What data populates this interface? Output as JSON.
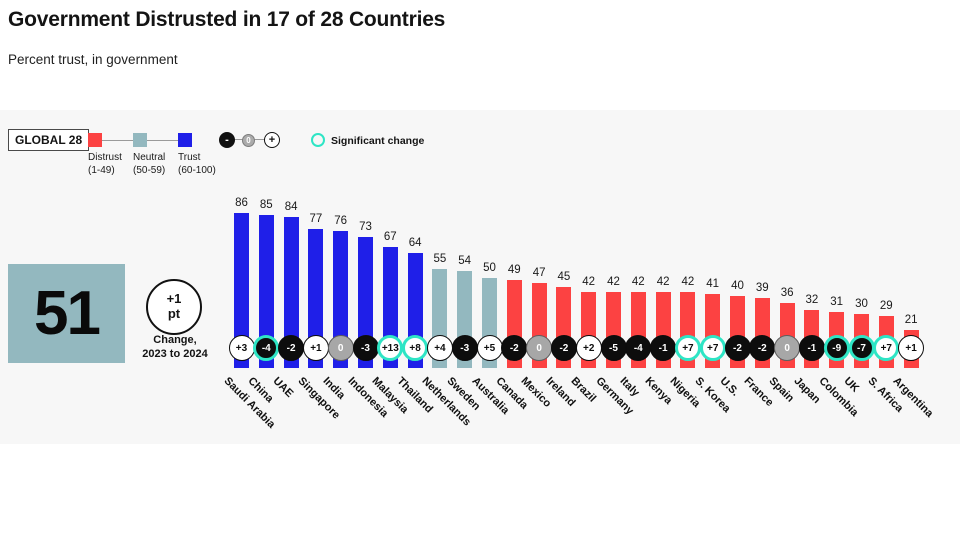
{
  "header": {
    "title": "Government Distrusted in 17 of 28 Countries",
    "subtitle": "Percent trust, in government"
  },
  "legend": {
    "global_label": "GLOBAL 28",
    "categories": [
      {
        "name": "Distrust",
        "range": "(1-49)",
        "color": "#fc4242"
      },
      {
        "name": "Neutral",
        "range": "(50-59)",
        "color": "#93b8bf"
      },
      {
        "name": "Trust",
        "range": "(60-100)",
        "color": "#1f1fe8"
      }
    ],
    "change_markers": {
      "minus": "-",
      "zero": "0",
      "plus": "+"
    },
    "significant_label": "Significant change",
    "significant_color": "#2ee5c5"
  },
  "summary": {
    "global_score": "51",
    "change_value": "+1",
    "change_unit": "pt",
    "change_caption_line1": "Change,",
    "change_caption_line2": "2023 to 2024"
  },
  "badge_colors": {
    "pos_bg": "#ffffff",
    "neg_bg": "#0d0d0d",
    "zero_bg": "#a7a7a7",
    "ring": "#2ee5c5"
  },
  "chart_data": {
    "type": "bar",
    "title": "Government Distrusted in 17 of 28 Countries",
    "ylabel": "Percent trust, in government",
    "ylim": [
      0,
      100
    ],
    "legend_position": "top-left",
    "grid": false,
    "color_rule": "value 1-49 distrust red, 50-59 neutral gray-blue, 60-100 trust blue",
    "countries": [
      {
        "name": "Saudi Arabia",
        "value": 86,
        "change": "+3",
        "significant": false
      },
      {
        "name": "China",
        "value": 85,
        "change": "-4",
        "significant": true
      },
      {
        "name": "UAE",
        "value": 84,
        "change": "-2",
        "significant": false
      },
      {
        "name": "Singapore",
        "value": 77,
        "change": "+1",
        "significant": false
      },
      {
        "name": "India",
        "value": 76,
        "change": "0",
        "significant": false
      },
      {
        "name": "Indonesia",
        "value": 73,
        "change": "-3",
        "significant": false
      },
      {
        "name": "Malaysia",
        "value": 67,
        "change": "+13",
        "significant": true
      },
      {
        "name": "Thailand",
        "value": 64,
        "change": "+8",
        "significant": true
      },
      {
        "name": "Netherlands",
        "value": 55,
        "change": "+4",
        "significant": false
      },
      {
        "name": "Sweden",
        "value": 54,
        "change": "-3",
        "significant": false
      },
      {
        "name": "Australia",
        "value": 50,
        "change": "+5",
        "significant": false
      },
      {
        "name": "Canada",
        "value": 49,
        "change": "-2",
        "significant": false
      },
      {
        "name": "Mexico",
        "value": 47,
        "change": "0",
        "significant": false
      },
      {
        "name": "Ireland",
        "value": 45,
        "change": "-2",
        "significant": false
      },
      {
        "name": "Brazil",
        "value": 42,
        "change": "+2",
        "significant": false
      },
      {
        "name": "Germany",
        "value": 42,
        "change": "-5",
        "significant": false
      },
      {
        "name": "Italy",
        "value": 42,
        "change": "-4",
        "significant": false
      },
      {
        "name": "Kenya",
        "value": 42,
        "change": "-1",
        "significant": false
      },
      {
        "name": "Nigeria",
        "value": 42,
        "change": "+7",
        "significant": true
      },
      {
        "name": "S. Korea",
        "value": 41,
        "change": "+7",
        "significant": true
      },
      {
        "name": "U.S.",
        "value": 40,
        "change": "-2",
        "significant": false
      },
      {
        "name": "France",
        "value": 39,
        "change": "-2",
        "significant": false
      },
      {
        "name": "Spain",
        "value": 36,
        "change": "0",
        "significant": false
      },
      {
        "name": "Japan",
        "value": 32,
        "change": "-1",
        "significant": false
      },
      {
        "name": "Colombia",
        "value": 31,
        "change": "-9",
        "significant": true
      },
      {
        "name": "UK",
        "value": 30,
        "change": "-7",
        "significant": true
      },
      {
        "name": "S. Africa",
        "value": 29,
        "change": "+7",
        "significant": true
      },
      {
        "name": "Argentina",
        "value": 21,
        "change": "+1",
        "significant": false
      }
    ]
  }
}
